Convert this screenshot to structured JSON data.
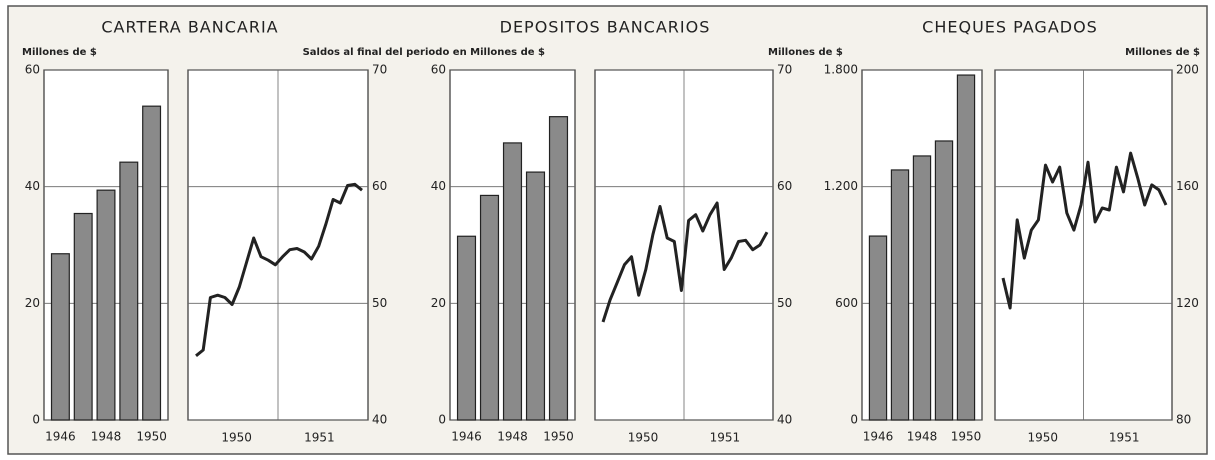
{
  "chart_data": [
    {
      "type": "bar",
      "title": "CARTERA BANCARIA",
      "y_label": "Millones de $",
      "categories": [
        "1946",
        null,
        "1948",
        null,
        "1950"
      ],
      "values": [
        28.5,
        35.4,
        39.4,
        44.2,
        53.8
      ],
      "color": "#8a8a8a",
      "ylim": [
        0,
        60
      ],
      "yticks": [
        0,
        20,
        40,
        60
      ],
      "grid": true
    },
    {
      "type": "line",
      "y_label": "Saldos al final del periodo en Millones de $",
      "year_labels": [
        "1950",
        "1951"
      ],
      "values": [
        45.5,
        46.0,
        50.5,
        50.7,
        50.5,
        49.9,
        51.4,
        53.5,
        55.6,
        54.0,
        53.7,
        53.3,
        54.0,
        54.6,
        54.7,
        54.4,
        53.8,
        54.9,
        56.8,
        58.9,
        58.6,
        60.1,
        60.2,
        59.7
      ],
      "color": "#222222",
      "ylim": [
        40,
        70
      ],
      "yticks": [
        40,
        50,
        60,
        70
      ],
      "grid": true
    },
    {
      "type": "bar",
      "title": "DEPOSITOS BANCARIOS",
      "categories": [
        "1946",
        null,
        "1948",
        null,
        "1950"
      ],
      "values": [
        31.5,
        38.5,
        47.5,
        42.5,
        52.0
      ],
      "color": "#8a8a8a",
      "ylim": [
        0,
        60
      ],
      "yticks": [
        0,
        20,
        40,
        60
      ],
      "grid": true
    },
    {
      "type": "line",
      "year_labels": [
        "1950",
        "1951"
      ],
      "values": [
        48.4,
        50.3,
        51.8,
        53.3,
        54.0,
        50.7,
        52.9,
        55.9,
        58.3,
        55.6,
        55.3,
        51.1,
        57.1,
        57.6,
        56.2,
        57.6,
        58.6,
        52.9,
        53.9,
        55.3,
        55.4,
        54.6,
        55.0,
        56.1
      ],
      "color": "#222222",
      "ylim": [
        40,
        70
      ],
      "yticks": [
        40,
        50,
        60,
        70
      ],
      "grid": true
    },
    {
      "type": "bar",
      "title": "CHEQUES PAGADOS",
      "y_label": "Millones de $",
      "categories": [
        "1946",
        null,
        "1948",
        null,
        "1950"
      ],
      "values": [
        946,
        1286,
        1358,
        1435,
        1774
      ],
      "color": "#8a8a8a",
      "ylim": [
        0,
        1800
      ],
      "yticks": [
        0,
        600,
        {
          "value": 1200,
          "label": "1.200"
        },
        {
          "value": 1800,
          "label": "1.800"
        }
      ],
      "grid": true
    },
    {
      "type": "line",
      "y_label": "Millones de $",
      "year_labels": [
        "1950",
        "1951"
      ],
      "values": [
        128.7,
        118.4,
        148.6,
        135.5,
        145.1,
        148.6,
        167.4,
        161.6,
        166.7,
        151.0,
        145.1,
        153.7,
        168.4,
        147.9,
        152.7,
        152.0,
        166.7,
        158.2,
        171.5,
        163.0,
        153.7,
        160.6,
        158.9,
        153.7
      ],
      "color": "#222222",
      "ylim": [
        80,
        200
      ],
      "yticks": [
        80,
        120,
        160,
        200
      ],
      "grid": true
    }
  ]
}
